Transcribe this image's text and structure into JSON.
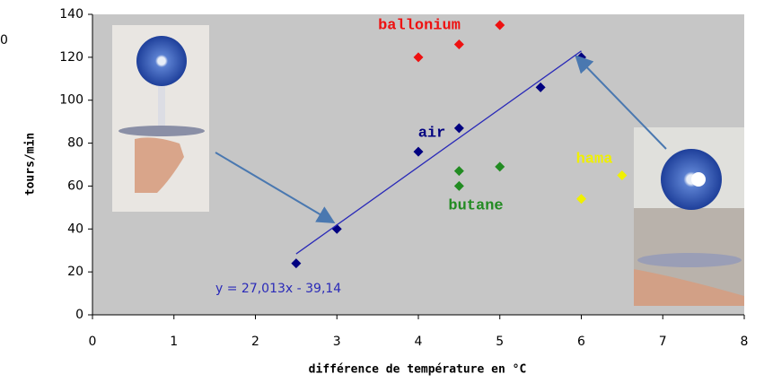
{
  "edge_text": "0",
  "chart_data": {
    "type": "scatter",
    "x_label": "différence de température en °C",
    "y_label": "tours/min",
    "xlim": [
      0,
      8
    ],
    "xticks": [
      0,
      1,
      2,
      3,
      4,
      5,
      6,
      7,
      8
    ],
    "ylim": [
      0,
      140
    ],
    "yticks": [
      0,
      20,
      40,
      60,
      80,
      100,
      120,
      140
    ],
    "grid": false,
    "series": [
      {
        "name": "air",
        "color": "#000080",
        "x": [
          2.5,
          3,
          4,
          4.5,
          5.5,
          6
        ],
        "values": [
          24,
          40,
          76,
          87,
          106,
          120
        ]
      },
      {
        "name": "ballonium",
        "color": "#ee1111",
        "x": [
          4,
          4.5,
          5
        ],
        "values": [
          120,
          126,
          135
        ]
      },
      {
        "name": "butane",
        "color": "#228b22",
        "x": [
          4.5,
          4.5,
          5
        ],
        "values": [
          67,
          60,
          69
        ]
      },
      {
        "name": "hama",
        "color": "#f0f000",
        "x": [
          6,
          6.5
        ],
        "values": [
          54,
          65
        ]
      }
    ],
    "trendline": {
      "series": 0,
      "slope": 27.013,
      "intercept": -39.14,
      "label": "y = 27,013x - 39,14",
      "color": "#2a2ab8"
    }
  }
}
